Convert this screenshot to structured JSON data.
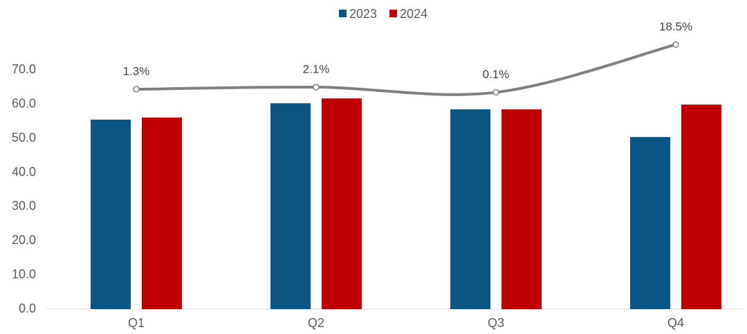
{
  "chart_data": {
    "type": "bar",
    "categories": [
      "Q1",
      "Q2",
      "Q3",
      "Q4"
    ],
    "series": [
      {
        "name": "2023",
        "color": "#0b5585",
        "values": [
          55.5,
          60.3,
          58.5,
          50.4
        ]
      },
      {
        "name": "2024",
        "color": "#c00000",
        "values": [
          56.1,
          61.7,
          58.5,
          59.9
        ]
      },
      {
        "type": "line",
        "axis": "y2",
        "color": "#7f7f7f",
        "values": [
          1.3,
          2.1,
          0.1,
          18.5
        ],
        "value_labels": [
          "1.3%",
          "2.1%",
          "0.1%",
          "18.5%"
        ]
      }
    ],
    "ylim": [
      0,
      80
    ],
    "yticks": [
      {
        "value": 0,
        "label": "0.0"
      },
      {
        "value": 10,
        "label": "10.0"
      },
      {
        "value": 20,
        "label": "20.0"
      },
      {
        "value": 30,
        "label": "30.0"
      },
      {
        "value": 40,
        "label": "40.0"
      },
      {
        "value": 50,
        "label": "50.0"
      },
      {
        "value": 60,
        "label": "60.0"
      },
      {
        "value": 70,
        "label": "70.0"
      }
    ],
    "y2lim": [
      -83.3,
      21.8
    ],
    "legend": "top"
  }
}
